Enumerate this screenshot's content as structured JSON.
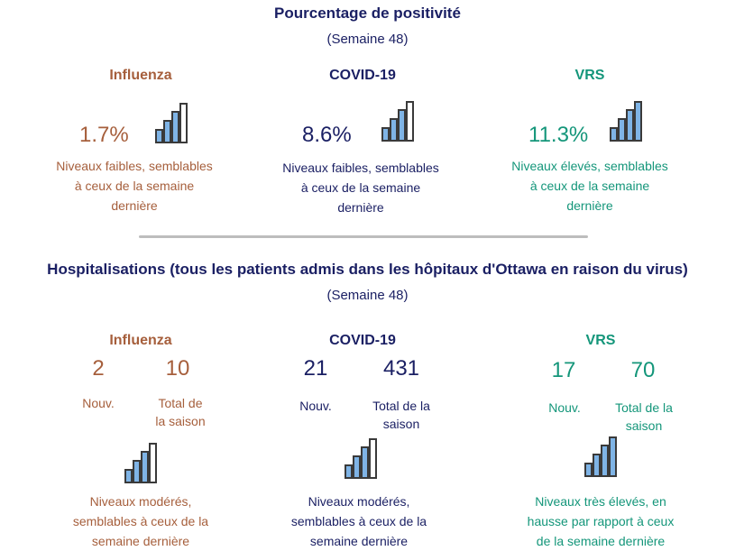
{
  "positivity": {
    "title": "Pourcentage de positivité",
    "week": "(Semaine 48)",
    "items": [
      {
        "name": "Influenza",
        "value": "1.7%",
        "level": 3,
        "desc": [
          "Niveaux faibles, semblables",
          "à ceux de la semaine",
          "dernière"
        ]
      },
      {
        "name": "COVID-19",
        "value": "8.6%",
        "level": 3,
        "desc": [
          "Niveaux faibles, semblables",
          "à ceux de la semaine",
          "dernière"
        ]
      },
      {
        "name": "VRS",
        "value": "11.3%",
        "level": 4,
        "desc": [
          "Niveaux élevés, semblables",
          "à ceux de la semaine",
          "dernière"
        ]
      }
    ]
  },
  "hospital": {
    "title": "Hospitalisations (tous les patients admis dans les hôpitaux d'Ottawa en raison du virus)",
    "week": "(Semaine 48)",
    "items": [
      {
        "name": "Influenza",
        "new": "2",
        "total": "10",
        "new_label": "Nouv.",
        "total_label": [
          "Total de",
          "la saison"
        ],
        "level": 3,
        "desc": [
          "Niveaux modérés,",
          "semblables à ceux de la",
          "semaine dernière"
        ]
      },
      {
        "name": "COVID-19",
        "new": "21",
        "total": "431",
        "new_label": "Nouv.",
        "total_label": [
          "Total de la",
          "saison"
        ],
        "level": 3,
        "desc": [
          "Niveaux modérés,",
          "semblables à ceux de la",
          "semaine dernière"
        ]
      },
      {
        "name": "VRS",
        "new": "17",
        "total": "70",
        "new_label": "Nouv.",
        "total_label": [
          "Total de la",
          "saison"
        ],
        "level": 4,
        "desc": [
          "Niveaux très élevés, en",
          "hausse par rapport à ceux",
          "de la semaine dernière"
        ]
      }
    ]
  },
  "colors": {
    "flu": "#a65f3c",
    "covid": "#1a1f63",
    "rsv": "#14967a",
    "bar_fill": "#7fb4e6",
    "bar_stroke": "#3a3a3a"
  }
}
